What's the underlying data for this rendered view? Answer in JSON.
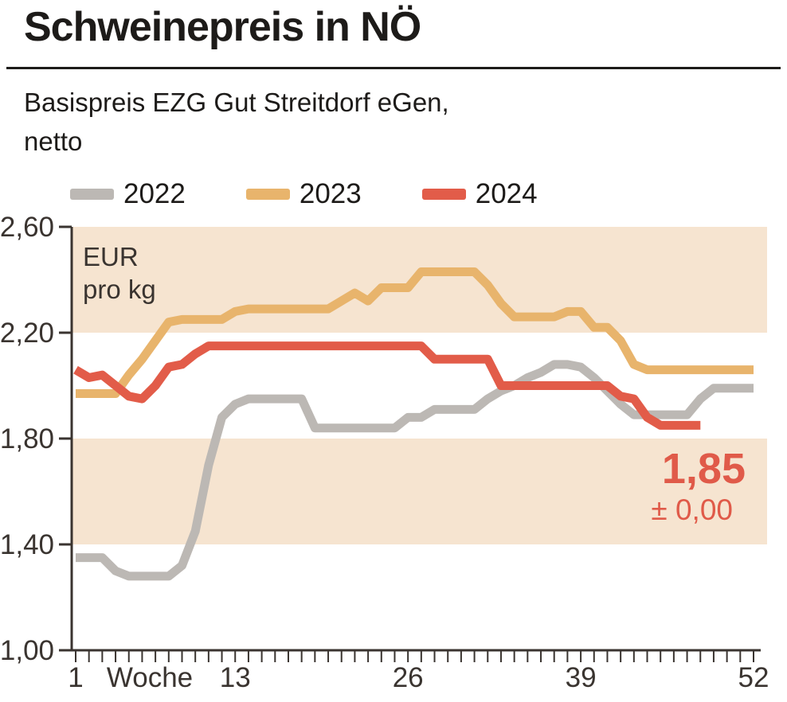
{
  "page": {
    "title": "Schweinepreis in NÖ",
    "subtitle_line1": "Basispreis EZG Gut Streitdorf eGen,",
    "subtitle_line2": "netto"
  },
  "unit_label": {
    "line1": "EUR",
    "line2": "pro kg"
  },
  "x_axis_word": "Woche",
  "annotation": {
    "price": "1,85",
    "change": "± 0,00"
  },
  "colors": {
    "band": "#f6e4d0",
    "axis": "#3a3430",
    "text": "#1d1b19",
    "annotation_red": "#e05a49"
  },
  "chart_data": {
    "type": "line",
    "title": "Schweinepreis in NÖ",
    "subtitle": "Basispreis EZG Gut Streitdorf eGen, netto",
    "xlabel": "Woche",
    "ylabel": "EUR pro kg",
    "x_unit": "Woche (week number)",
    "ylim": [
      1.0,
      2.6
    ],
    "y_min": 1.0,
    "y_max": 2.6,
    "y_ticks": [
      {
        "value": 2.6,
        "label": "2,60"
      },
      {
        "value": 2.2,
        "label": "2,20"
      },
      {
        "value": 1.8,
        "label": "1,80"
      },
      {
        "value": 1.4,
        "label": "1,40"
      },
      {
        "value": 1.0,
        "label": "1,00"
      }
    ],
    "x_ticks": [
      {
        "week": 1,
        "label": "1"
      },
      {
        "week": 13,
        "label": "13"
      },
      {
        "week": 26,
        "label": "26"
      },
      {
        "week": 39,
        "label": "39"
      },
      {
        "week": 52,
        "label": "52"
      }
    ],
    "minor_x_ticks_every_week": true,
    "bands": [
      {
        "from": 2.2,
        "to": 2.6
      },
      {
        "from": 1.4,
        "to": 1.8
      }
    ],
    "legend_position": "top",
    "grid": false,
    "series": [
      {
        "name": "2022",
        "color": "#bcb8b4",
        "start_week": 1,
        "values": [
          1.35,
          1.35,
          1.35,
          1.3,
          1.28,
          1.28,
          1.28,
          1.28,
          1.32,
          1.45,
          1.7,
          1.88,
          1.93,
          1.95,
          1.95,
          1.95,
          1.95,
          1.95,
          1.84,
          1.84,
          1.84,
          1.84,
          1.84,
          1.84,
          1.84,
          1.88,
          1.88,
          1.91,
          1.91,
          1.91,
          1.91,
          1.95,
          1.98,
          2.0,
          2.03,
          2.05,
          2.08,
          2.08,
          2.07,
          2.03,
          1.98,
          1.93,
          1.89,
          1.89,
          1.89,
          1.89,
          1.89,
          1.95,
          1.99,
          1.99,
          1.99,
          1.99
        ]
      },
      {
        "name": "2023",
        "color": "#e8b46c",
        "start_week": 1,
        "values": [
          1.97,
          1.97,
          1.97,
          1.97,
          2.04,
          2.1,
          2.17,
          2.24,
          2.25,
          2.25,
          2.25,
          2.25,
          2.28,
          2.29,
          2.29,
          2.29,
          2.29,
          2.29,
          2.29,
          2.29,
          2.32,
          2.35,
          2.32,
          2.37,
          2.37,
          2.37,
          2.43,
          2.43,
          2.43,
          2.43,
          2.43,
          2.38,
          2.31,
          2.26,
          2.26,
          2.26,
          2.26,
          2.28,
          2.28,
          2.22,
          2.22,
          2.17,
          2.08,
          2.06,
          2.06,
          2.06,
          2.06,
          2.06,
          2.06,
          2.06,
          2.06,
          2.06
        ]
      },
      {
        "name": "2024",
        "color": "#e25c49",
        "start_week": 1,
        "values": [
          2.06,
          2.03,
          2.04,
          2.0,
          1.96,
          1.95,
          2.0,
          2.07,
          2.08,
          2.12,
          2.15,
          2.15,
          2.15,
          2.15,
          2.15,
          2.15,
          2.15,
          2.15,
          2.15,
          2.15,
          2.15,
          2.15,
          2.15,
          2.15,
          2.15,
          2.15,
          2.15,
          2.1,
          2.1,
          2.1,
          2.1,
          2.1,
          2.0,
          2.0,
          2.0,
          2.0,
          2.0,
          2.0,
          2.0,
          2.0,
          2.0,
          1.96,
          1.95,
          1.88,
          1.85,
          1.85,
          1.85,
          1.85
        ]
      }
    ],
    "last_value_annotation": {
      "series": "2024",
      "value_label": "1,85",
      "change_label": "± 0,00"
    }
  }
}
